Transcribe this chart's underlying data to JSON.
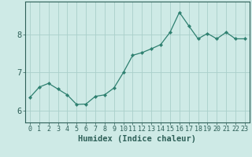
{
  "x": [
    0,
    1,
    2,
    3,
    4,
    5,
    6,
    7,
    8,
    9,
    10,
    11,
    12,
    13,
    14,
    15,
    16,
    17,
    18,
    19,
    20,
    21,
    22,
    23
  ],
  "y": [
    6.35,
    6.62,
    6.72,
    6.57,
    6.42,
    6.17,
    6.18,
    6.38,
    6.42,
    6.6,
    7.0,
    7.45,
    7.52,
    7.62,
    7.73,
    8.05,
    8.57,
    8.22,
    7.88,
    8.02,
    7.88,
    8.05,
    7.88,
    7.88
  ],
  "line_color": "#2e8070",
  "marker": "D",
  "marker_size": 2.2,
  "bg_color": "#ceeae6",
  "grid_color": "#aacfca",
  "axis_color": "#2e6058",
  "xlabel": "Humidex (Indice chaleur)",
  "xlabel_fontsize": 7.5,
  "tick_fontsize": 6.0,
  "ytick_fontsize": 7.5,
  "yticks": [
    6,
    7,
    8
  ],
  "ylim": [
    5.7,
    8.85
  ],
  "xlim": [
    -0.5,
    23.5
  ]
}
